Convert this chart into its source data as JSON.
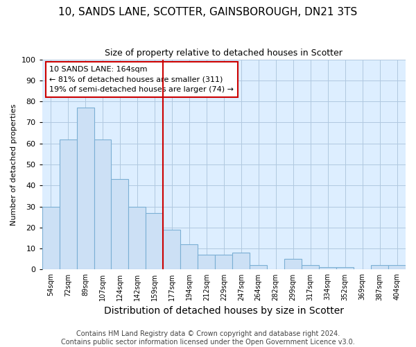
{
  "title": "10, SANDS LANE, SCOTTER, GAINSBOROUGH, DN21 3TS",
  "subtitle": "Size of property relative to detached houses in Scotter",
  "xlabel": "Distribution of detached houses by size in Scotter",
  "ylabel": "Number of detached properties",
  "categories": [
    "54sqm",
    "72sqm",
    "89sqm",
    "107sqm",
    "124sqm",
    "142sqm",
    "159sqm",
    "177sqm",
    "194sqm",
    "212sqm",
    "229sqm",
    "247sqm",
    "264sqm",
    "282sqm",
    "299sqm",
    "317sqm",
    "334sqm",
    "352sqm",
    "369sqm",
    "387sqm",
    "404sqm"
  ],
  "values": [
    30,
    62,
    77,
    62,
    43,
    30,
    27,
    19,
    12,
    7,
    7,
    8,
    2,
    0,
    5,
    2,
    1,
    1,
    0,
    2,
    2
  ],
  "bar_color": "#cce0f5",
  "bar_edge_color": "#7bafd4",
  "vline_x_index": 6.5,
  "vline_color": "#cc0000",
  "annotation_text_line1": "10 SANDS LANE: 164sqm",
  "annotation_text_line2": "← 81% of detached houses are smaller (311)",
  "annotation_text_line3": "19% of semi-detached houses are larger (74) →",
  "annotation_box_edgecolor": "#cc0000",
  "ylim": [
    0,
    100
  ],
  "yticks": [
    0,
    10,
    20,
    30,
    40,
    50,
    60,
    70,
    80,
    90,
    100
  ],
  "grid_color": "#b0c8e0",
  "plot_bg_color": "#ddeeff",
  "fig_bg_color": "#ffffff",
  "footer_line1": "Contains HM Land Registry data © Crown copyright and database right 2024.",
  "footer_line2": "Contains public sector information licensed under the Open Government Licence v3.0.",
  "title_fontsize": 11,
  "subtitle_fontsize": 9,
  "xlabel_fontsize": 10,
  "ylabel_fontsize": 8,
  "tick_fontsize": 8,
  "footer_fontsize": 7
}
